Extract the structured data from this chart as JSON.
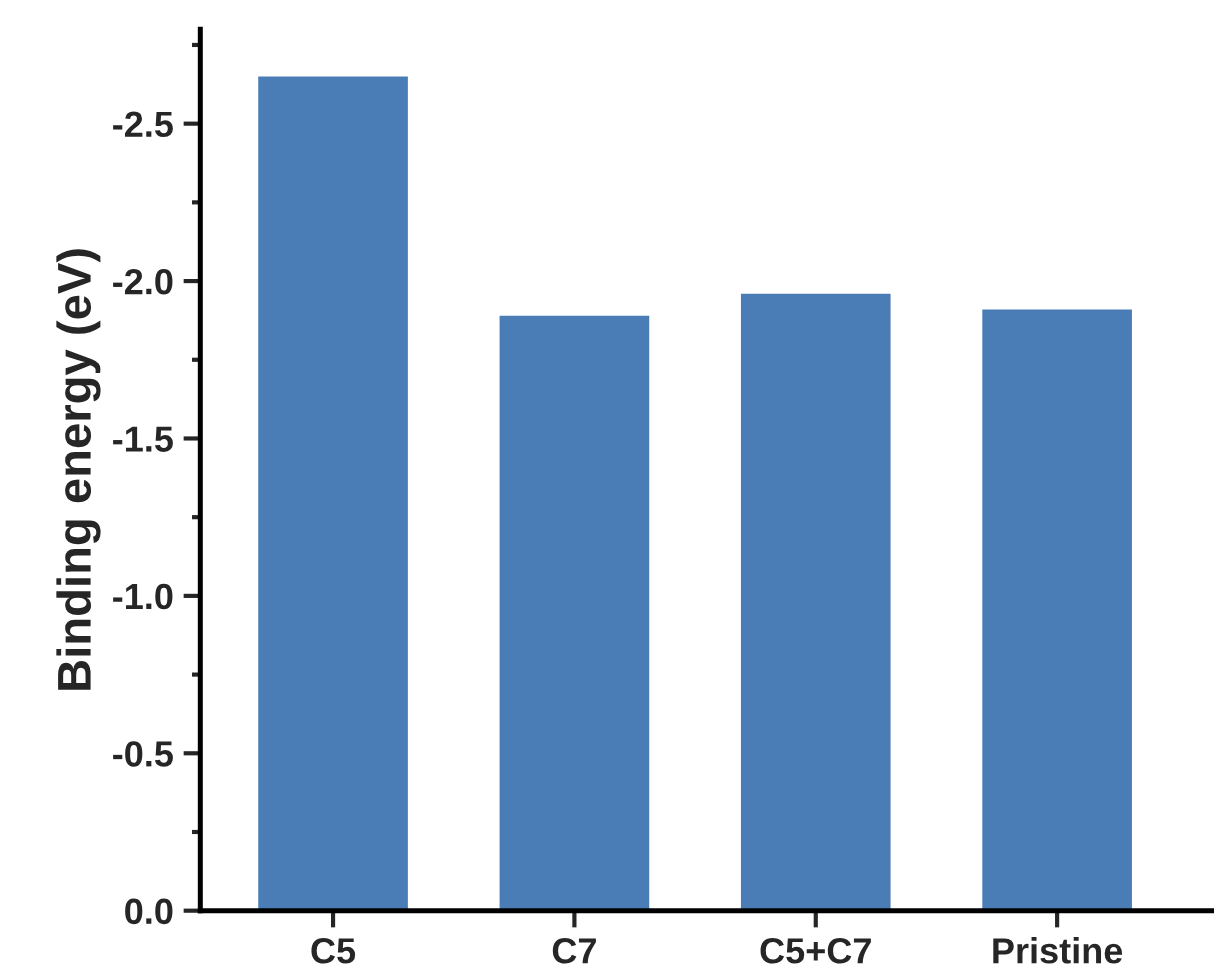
{
  "chart_data": {
    "type": "bar",
    "ylabel": "Binding energy (eV)",
    "categories": [
      "C5",
      "C7",
      "C5+C7",
      "Pristine"
    ],
    "values": [
      -2.65,
      -1.89,
      -1.96,
      -1.91
    ],
    "color": "#4a7db5",
    "ylim": [
      0,
      -2.8
    ],
    "yticks": [
      {
        "value": 0,
        "label": "0.0"
      },
      {
        "value": -0.5,
        "label": "-0.5"
      },
      {
        "value": -1.0,
        "label": "-1.0"
      },
      {
        "value": -1.5,
        "label": "-1.5"
      },
      {
        "value": -2.0,
        "label": "-2.0"
      },
      {
        "value": -2.5,
        "label": "-2.5"
      }
    ],
    "grid": false,
    "legend": false
  }
}
